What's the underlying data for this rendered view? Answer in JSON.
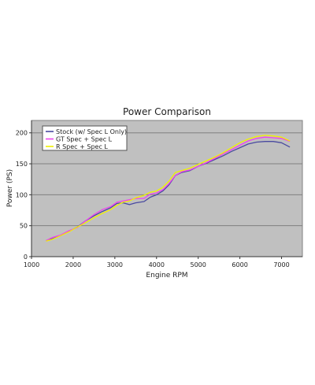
{
  "chart_data": {
    "type": "line",
    "title": "Power Comparison",
    "xlabel": "Engine RPM",
    "ylabel": "Power (PS)",
    "xlim": [
      1000,
      7500
    ],
    "ylim": [
      0,
      220
    ],
    "xticks": [
      1000,
      2000,
      3000,
      4000,
      5000,
      6000,
      7000
    ],
    "yticks": [
      0,
      50,
      100,
      150,
      200
    ],
    "grid": "horizontal",
    "legend_position": "top-left",
    "plot_background": "#c0c0c0",
    "series": [
      {
        "name": "Stock (w/ Spec L Only)",
        "color": "#4a4aa0",
        "x": [
          1350,
          1500,
          1700,
          1900,
          2100,
          2300,
          2500,
          2700,
          2900,
          3050,
          3200,
          3350,
          3500,
          3700,
          3850,
          4000,
          4150,
          4300,
          4450,
          4600,
          4800,
          5000,
          5200,
          5400,
          5600,
          5800,
          6000,
          6200,
          6400,
          6600,
          6800,
          7000,
          7200
        ],
        "y": [
          26,
          29,
          34,
          41,
          48,
          58,
          66,
          73,
          79,
          86,
          87,
          84,
          87,
          89,
          96,
          100,
          106,
          116,
          131,
          136,
          139,
          146,
          151,
          157,
          163,
          170,
          176,
          182,
          185,
          186,
          186,
          184,
          177
        ]
      },
      {
        "name": "GT Spec + Spec L",
        "color": "#ee44ee",
        "x": [
          1350,
          1500,
          1700,
          1900,
          2100,
          2300,
          2500,
          2700,
          2900,
          3050,
          3200,
          3350,
          3500,
          3700,
          3850,
          4000,
          4150,
          4300,
          4450,
          4600,
          4800,
          5000,
          5200,
          5400,
          5600,
          5800,
          6000,
          6200,
          6400,
          6600,
          6800,
          7000,
          7200
        ],
        "y": [
          26,
          31,
          35,
          42,
          47,
          58,
          68,
          76,
          81,
          88,
          90,
          92,
          94,
          94,
          101,
          103,
          108,
          118,
          131,
          137,
          140,
          146,
          152,
          159,
          166,
          173,
          180,
          187,
          191,
          193,
          192,
          191,
          186
        ]
      },
      {
        "name": "R Spec + Spec L",
        "color": "#f0f000",
        "x": [
          1350,
          1500,
          1700,
          1900,
          2100,
          2300,
          2500,
          2700,
          2900,
          3050,
          3200,
          3350,
          3500,
          3700,
          3850,
          4000,
          4150,
          4300,
          4450,
          4600,
          4800,
          5000,
          5200,
          5400,
          5600,
          5800,
          6000,
          6200,
          6400,
          6600,
          6800,
          7000,
          7200
        ],
        "y": [
          25,
          28,
          34,
          40,
          48,
          55,
          63,
          70,
          76,
          83,
          88,
          90,
          95,
          99,
          104,
          106,
          112,
          122,
          136,
          139,
          143,
          149,
          155,
          161,
          168,
          176,
          184,
          190,
          194,
          196,
          195,
          193,
          187
        ]
      }
    ]
  }
}
